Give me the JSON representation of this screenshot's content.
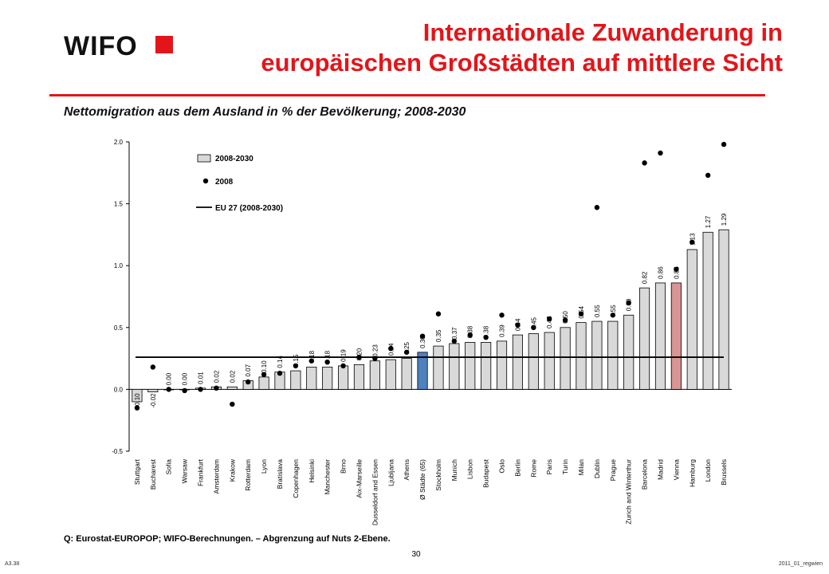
{
  "header": {
    "logo_text": "WIFO",
    "brand_color": "#e3151a",
    "title_line1": "Internationale Zuwanderung in",
    "title_line2": "europäischen Großstädten auf mittlere Sicht",
    "subtitle": "Nettomigration aus dem Ausland in % der Bevölkerung; 2008-2030"
  },
  "footer": {
    "source": "Q: Eurostat-EUROPOP; WIFO-Berechnungen. – Abgrenzung auf Nuts 2-Ebene.",
    "page_number": "30",
    "code_left": "A3.38",
    "code_right": "2011_01_regwien"
  },
  "chart_data": {
    "type": "bar",
    "categories": [
      "Stuttgart",
      "Bucharest",
      "Sofia",
      "Warsaw",
      "Frankfurt",
      "Amsterdam",
      "Krakow",
      "Rotterdam",
      "Lyon",
      "Bratislava",
      "Copenhagen",
      "Helsinki",
      "Manchester",
      "Brno",
      "Aix-Marseille",
      "Dusseldorf and Essen",
      "Ljubljana",
      "Athens",
      "Ø Städte (65)",
      "Stockholm",
      "Munich",
      "Lisbon",
      "Budapest",
      "Oslo",
      "Berlin",
      "Rome",
      "Paris",
      "Turin",
      "Milan",
      "Dublin",
      "Prague",
      "Zurich and Winterthur",
      "Barcelona",
      "Madrid",
      "Vienna",
      "Hamburg",
      "London",
      "Brussels"
    ],
    "series": [
      {
        "name": "2008-2030",
        "type": "bar",
        "values": [
          -0.1,
          -0.02,
          0.0,
          0.0,
          0.01,
          0.02,
          0.02,
          0.07,
          0.1,
          0.14,
          0.15,
          0.18,
          0.18,
          0.19,
          0.2,
          0.23,
          0.24,
          0.25,
          0.3,
          0.35,
          0.37,
          0.38,
          0.38,
          0.39,
          0.44,
          0.45,
          0.46,
          0.5,
          0.54,
          0.55,
          0.55,
          0.6,
          0.82,
          0.86,
          0.86,
          1.13,
          1.27,
          1.29
        ],
        "labels": [
          "-0.10",
          "-0.02",
          "0.00",
          "0.00",
          "0.01",
          "0.02",
          "0.02",
          "0.07",
          "0.10",
          "0.14",
          "0.15",
          "0.18",
          "0.18",
          "0.19",
          "0.20",
          "0.23",
          "0.24",
          "0.25",
          "0.30",
          "0.35",
          "0.37",
          "0.38",
          "0.38",
          "0.39",
          "0.44",
          "0.45",
          "0.46",
          "0.50",
          "0.54",
          "0.55",
          "0.55",
          "0.60",
          "0.82",
          "0.86",
          "0.86",
          "1.13",
          "1.27",
          "1.29"
        ],
        "bar_colors": {
          "default": "#d9d9d9",
          "highlight_avg": "#4f81bd",
          "highlight_vienna": "#d99594"
        },
        "highlight_avg_index": 18,
        "highlight_vienna_index": 34
      },
      {
        "name": "2008",
        "type": "scatter",
        "values": [
          -0.15,
          0.18,
          0.0,
          -0.01,
          0.0,
          0.01,
          -0.12,
          0.06,
          0.12,
          0.13,
          0.19,
          0.23,
          0.22,
          0.19,
          0.26,
          0.25,
          0.33,
          0.3,
          0.43,
          0.61,
          0.39,
          0.44,
          0.42,
          0.6,
          0.52,
          0.5,
          0.57,
          0.56,
          0.61,
          1.47,
          0.6,
          0.7,
          1.83,
          1.91,
          0.97,
          1.19,
          1.73,
          1.98
        ]
      },
      {
        "name": "EU 27 (2008-2030)",
        "type": "line",
        "value": 0.26
      }
    ],
    "ylim": [
      -0.5,
      2.0
    ],
    "yticks": [
      "-0.5",
      "0.0",
      "0.5",
      "1.0",
      "1.5",
      "2.0"
    ],
    "ytick_values": [
      -0.5,
      0.0,
      0.5,
      1.0,
      1.5,
      2.0
    ],
    "legend_position": "top-left",
    "grid": false
  }
}
